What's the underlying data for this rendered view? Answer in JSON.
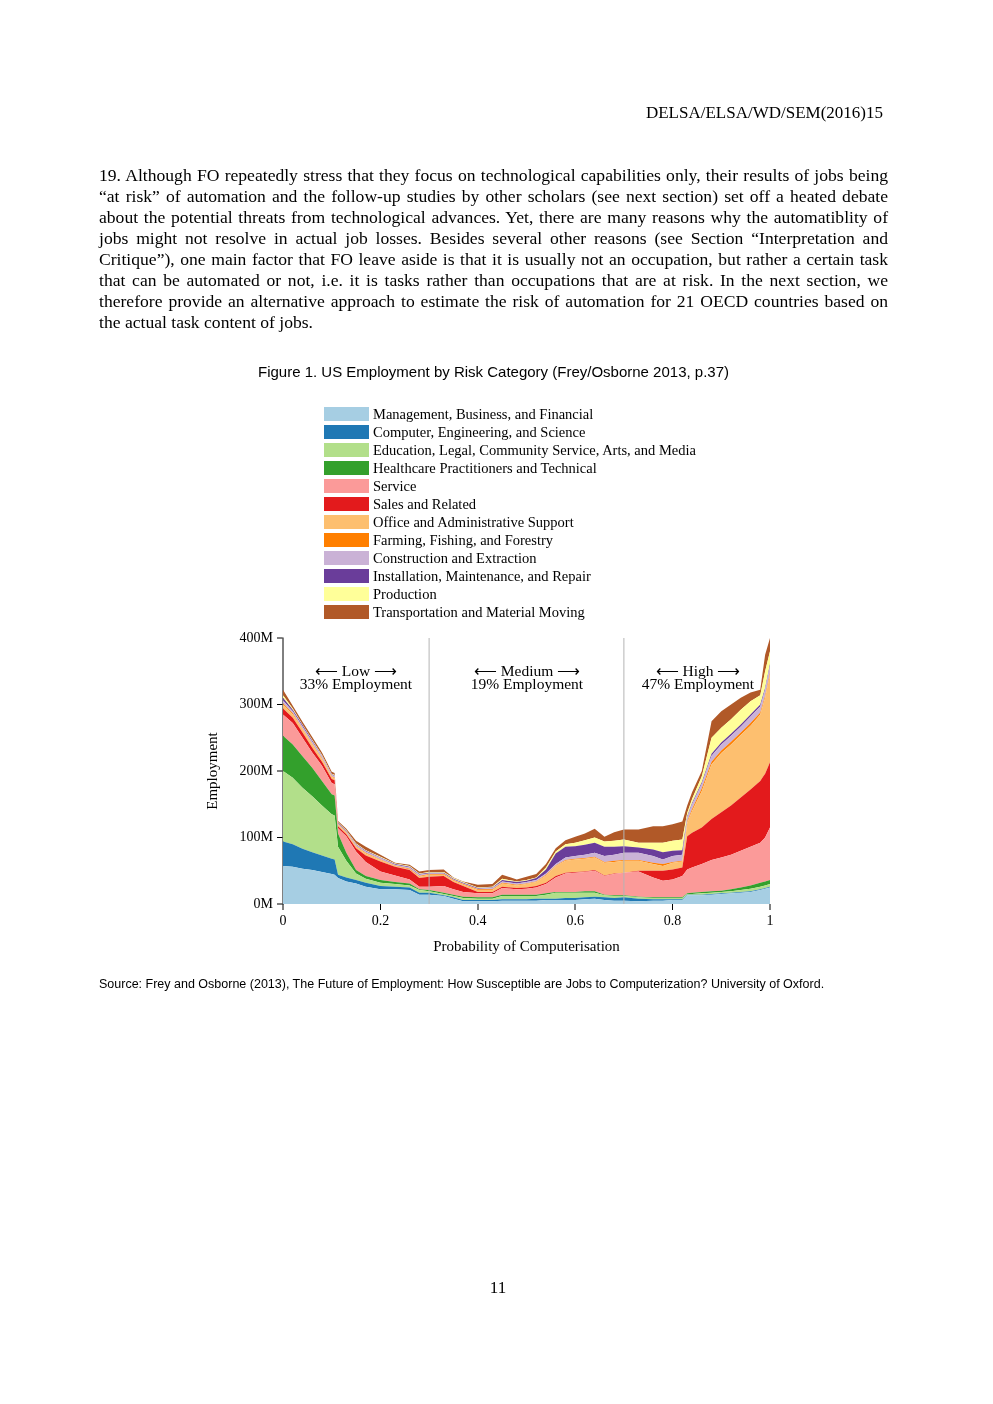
{
  "chart_data": {
    "type": "area",
    "title": "Figure 1. US Employment by Risk Category (Frey/Osborne 2013, p.37)",
    "xlabel": "Probability of Computerisation",
    "ylabel": "Employment",
    "stacked": true,
    "legend": "top",
    "grid": false,
    "x": [
      0,
      0.02,
      0.04,
      0.06,
      0.08,
      0.1,
      0.106,
      0.113,
      0.13,
      0.15,
      0.17,
      0.2,
      0.23,
      0.26,
      0.28,
      0.3,
      0.33,
      0.35,
      0.37,
      0.4,
      0.43,
      0.45,
      0.48,
      0.5,
      0.52,
      0.54,
      0.56,
      0.58,
      0.6,
      0.62,
      0.64,
      0.66,
      0.68,
      0.7,
      0.73,
      0.76,
      0.78,
      0.8,
      0.82,
      0.83,
      0.84,
      0.86,
      0.88,
      0.9,
      0.92,
      0.94,
      0.96,
      0.98,
      0.99,
      1
    ],
    "xlim": [
      0,
      1
    ],
    "xticks": [
      0,
      0.2,
      0.4,
      0.6,
      0.8,
      1
    ],
    "ylim": [
      0,
      400
    ],
    "yticks": [
      {
        "value": 0,
        "label": "0M"
      },
      {
        "value": 100,
        "label": "100M"
      },
      {
        "value": 200,
        "label": "200M"
      },
      {
        "value": 300,
        "label": "300M"
      },
      {
        "value": 400,
        "label": "400M"
      }
    ],
    "ref_lines": [
      {
        "axis": "x",
        "value": 0.3,
        "color": "#b4b4b4"
      },
      {
        "axis": "x",
        "value": 0.7,
        "color": "#b4b4b4"
      }
    ],
    "annotations": [
      "DELSA/ELSA/WD/SEM(2016)15",
      "19. Although FO repeatedly stress that they focus on technological capabilities only, their results of jobs being “at risk” of automation and the follow-up studies by other scholars (see next section) set off a heated debate about the potential threats from technological advances. Yet, there are many reasons why the automatiblity of jobs might not resolve in actual job losses. Besides several other reasons (see Section “Interpretation and Critique”), one main factor that FO leave aside is that it is usually not an occupation, but rather a certain task that can be automated or not, i.e. it is tasks rather than occupations that are at risk. In the next section, we therefore provide an alternative approach to estimate the risk of automation for 21 OECD countries based on the actual task content of jobs.",
      "⟵ Low ⟶",
      "33% Employment",
      "⟵ Medium ⟶",
      "19% Employment",
      "⟵ High ⟶",
      "47% Employment",
      "Source: Frey and Osborne (2013), The Future of Employment: How Susceptible are Jobs to Computerization? University of Oxford.",
      "11"
    ],
    "series": [
      {
        "name": "Management, Business, and Financial",
        "color": "#a6cee3",
        "values": [
          57,
          56,
          53,
          51,
          48,
          45,
          44,
          39,
          34,
          31,
          26,
          22,
          22,
          21,
          14,
          14,
          12,
          8,
          4,
          4,
          4,
          5,
          5,
          5,
          5,
          6,
          6,
          6,
          6,
          7,
          8,
          6,
          5,
          5,
          4,
          5,
          5,
          6,
          6,
          13,
          13,
          13,
          14,
          15,
          16,
          17,
          18,
          21,
          23,
          25
        ]
      },
      {
        "name": "Computer, Engineering, and Science",
        "color": "#1f78b4",
        "values": [
          37,
          34,
          30,
          27,
          25,
          23,
          23,
          5,
          6,
          5,
          6,
          5,
          4,
          4,
          3,
          3,
          1,
          2,
          2,
          2,
          2,
          2,
          2,
          2,
          3,
          2,
          2,
          3,
          3,
          3,
          3,
          4,
          4,
          5,
          4,
          2,
          2,
          1,
          1,
          1,
          1,
          1,
          1,
          1,
          1,
          1,
          1,
          1,
          1,
          1
        ]
      },
      {
        "name": "Education, Legal, Community Service, Arts, and Media",
        "color": "#b2df8a",
        "values": [
          106,
          100,
          92,
          84,
          75,
          67,
          66,
          42,
          25,
          10,
          6,
          5,
          4,
          3,
          4,
          2,
          2,
          2,
          3,
          2,
          2,
          5,
          5,
          5,
          4,
          6,
          9,
          8,
          8,
          7,
          6,
          3,
          3,
          2,
          2,
          2,
          2,
          2,
          2,
          1,
          1,
          2,
          2,
          2,
          2,
          3,
          4,
          4,
          4,
          4
        ]
      },
      {
        "name": "Healthcare Practitioners and Technical",
        "color": "#33a02c",
        "values": [
          53,
          50,
          47,
          43,
          37,
          30,
          30,
          20,
          12,
          5,
          4,
          4,
          3,
          3,
          1,
          2,
          2,
          2,
          2,
          2,
          2,
          2,
          2,
          2,
          2,
          2,
          1,
          1,
          1,
          2,
          2,
          1,
          1,
          1,
          1,
          1,
          1,
          1,
          1,
          1,
          2,
          2,
          2,
          2,
          3,
          4,
          5,
          6,
          6,
          6
        ]
      },
      {
        "name": "Service",
        "color": "#fb9a99",
        "values": [
          32,
          32,
          28,
          23,
          23,
          17,
          17,
          8,
          25,
          28,
          21,
          13,
          10,
          6,
          4,
          5,
          10,
          8,
          7,
          6,
          6,
          10,
          8,
          9,
          11,
          14,
          22,
          28,
          29,
          29,
          31,
          28,
          32,
          34,
          38,
          30,
          25,
          27,
          32,
          36,
          38,
          42,
          47,
          50,
          52,
          55,
          58,
          60,
          66,
          79
        ]
      },
      {
        "name": "Sales and Related",
        "color": "#e31a1c",
        "values": [
          9,
          8,
          8,
          7,
          6,
          6,
          6,
          3,
          3,
          5,
          10,
          15,
          13,
          14,
          13,
          15,
          15,
          11,
          9,
          2,
          2,
          2,
          2,
          2,
          2,
          2,
          2,
          1,
          1,
          1,
          1,
          1,
          1,
          0,
          1,
          10,
          15,
          15,
          13,
          50,
          52,
          55,
          62,
          68,
          74,
          80,
          86,
          93,
          96,
          98
        ]
      },
      {
        "name": "Office and Administrative Support",
        "color": "#fdbf6f",
        "values": [
          6,
          5,
          5,
          5,
          4,
          3,
          3,
          2,
          2,
          2,
          3,
          2,
          1,
          1,
          2,
          3,
          2,
          2,
          2,
          3,
          3,
          5,
          4,
          5,
          6,
          11,
          15,
          18,
          19,
          19,
          19,
          19,
          17,
          18,
          15,
          10,
          7,
          10,
          9,
          20,
          33,
          55,
          82,
          89,
          92,
          94,
          96,
          100,
          114,
          132
        ]
      },
      {
        "name": "Farming, Fishing, and Forestry",
        "color": "#ff7f00",
        "values": [
          2,
          2,
          1,
          1,
          1,
          1,
          1,
          1,
          1,
          1,
          1,
          1,
          1,
          1,
          1,
          1,
          1,
          1,
          1,
          1,
          1,
          1,
          1,
          1,
          1,
          1,
          1,
          1,
          1,
          1,
          1,
          1,
          2,
          1,
          1,
          2,
          3,
          1,
          1,
          2,
          3,
          4,
          4,
          4,
          4,
          4,
          4,
          3,
          3,
          3
        ]
      },
      {
        "name": "Construction and Extraction",
        "color": "#cab2d6",
        "values": [
          4,
          3,
          3,
          3,
          3,
          2,
          2,
          1,
          1,
          2,
          2,
          2,
          1,
          2,
          2,
          1,
          1,
          1,
          1,
          1,
          2,
          2,
          2,
          2,
          2,
          2,
          2,
          4,
          4,
          5,
          6,
          9,
          9,
          11,
          11,
          10,
          7,
          9,
          9,
          6,
          7,
          7,
          9,
          9,
          9,
          9,
          10,
          9,
          9,
          10
        ]
      },
      {
        "name": "Installation, Maintenance, and Repair",
        "color": "#6a3d9a",
        "values": [
          4,
          2,
          2,
          2,
          1,
          1,
          1,
          1,
          1,
          1,
          1,
          1,
          1,
          1,
          1,
          1,
          1,
          1,
          1,
          1,
          1,
          2,
          2,
          2,
          3,
          6,
          16,
          16,
          15,
          15,
          15,
          14,
          12,
          10,
          8,
          10,
          11,
          8,
          7,
          2,
          2,
          2,
          3,
          3,
          3,
          3,
          3,
          3,
          3,
          3
        ]
      },
      {
        "name": "Production",
        "color": "#ffff99",
        "values": [
          4,
          2,
          1,
          1,
          1,
          1,
          1,
          1,
          1,
          1,
          1,
          1,
          1,
          1,
          1,
          1,
          1,
          1,
          1,
          1,
          1,
          2,
          1,
          1,
          1,
          3,
          3,
          4,
          5,
          7,
          8,
          8,
          9,
          10,
          7,
          10,
          14,
          15,
          16,
          5,
          6,
          9,
          24,
          22,
          22,
          22,
          20,
          14,
          25,
          19
        ]
      },
      {
        "name": "Transportation and Material Moving",
        "color": "#b15928",
        "values": [
          8,
          4,
          4,
          4,
          4,
          3,
          3,
          2,
          2,
          4,
          5,
          3,
          1,
          2,
          3,
          3,
          4,
          1,
          1,
          4,
          4,
          6,
          3,
          5,
          5,
          5,
          5,
          6,
          9,
          10,
          13,
          7,
          13,
          15,
          20,
          25,
          25,
          25,
          27,
          11,
          10,
          8,
          25,
          25,
          22,
          18,
          13,
          8,
          25,
          20
        ]
      }
    ]
  }
}
